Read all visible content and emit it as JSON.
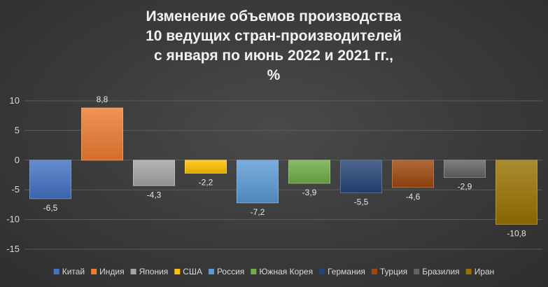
{
  "chart_data": {
    "type": "bar",
    "title_lines": [
      "Изменение объемов производства",
      "10 ведущих стран-производителей",
      "с января по июнь 2022 и 2021 гг.,",
      "%"
    ],
    "categories": [
      "Китай",
      "Индия",
      "Япония",
      "США",
      "Россия",
      "Южная Корея",
      "Германия",
      "Турция",
      "Бразилия",
      "Иран"
    ],
    "values": [
      -6.5,
      8.8,
      -4.3,
      -2.2,
      -7.2,
      -3.9,
      -5.5,
      -4.6,
      -2.9,
      -10.8
    ],
    "value_labels": [
      "-6,5",
      "8,8",
      "-4,3",
      "-2,2",
      "-7,2",
      "-3,9",
      "-5,5",
      "-4,6",
      "-2,9",
      "-10,8"
    ],
    "colors": [
      "#4472c4",
      "#ed7d31",
      "#a5a5a5",
      "#ffc000",
      "#5b9bd5",
      "#70ad47",
      "#264478",
      "#9e480e",
      "#636363",
      "#997300"
    ],
    "ylim": [
      -15,
      10
    ],
    "yticks": [
      10,
      5,
      0,
      -5,
      -10,
      -15
    ],
    "grid": true,
    "legend_position": "bottom"
  }
}
